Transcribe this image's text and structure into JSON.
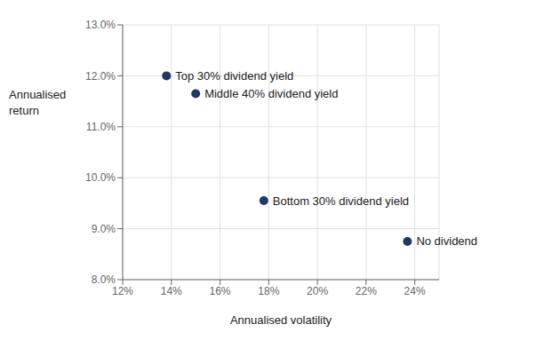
{
  "chart_data": {
    "type": "scatter",
    "x": [
      0.138,
      0.15,
      0.178,
      0.237
    ],
    "values": [
      0.12,
      0.1165,
      0.0955,
      0.0875
    ],
    "labels": [
      "Top 30% dividend yield",
      "Middle 40% dividend yield",
      "Bottom 30% dividend yield",
      "No dividend"
    ],
    "color": "#1F3864",
    "xlim": [
      0.12,
      0.25
    ],
    "ylim": [
      0.08,
      0.13
    ],
    "xticks": [
      {
        "value": 0.12,
        "label": "12%"
      },
      {
        "value": 0.14,
        "label": "14%"
      },
      {
        "value": 0.16,
        "label": "16%"
      },
      {
        "value": 0.18,
        "label": "18%"
      },
      {
        "value": 0.2,
        "label": "20%"
      },
      {
        "value": 0.22,
        "label": "22%"
      },
      {
        "value": 0.24,
        "label": "24%"
      }
    ],
    "yticks": [
      {
        "value": 0.08,
        "label": "8.0%"
      },
      {
        "value": 0.09,
        "label": "9.0%"
      },
      {
        "value": 0.1,
        "label": "10.0%"
      },
      {
        "value": 0.11,
        "label": "11.0%"
      },
      {
        "value": 0.12,
        "label": "12.0%"
      },
      {
        "value": 0.13,
        "label": "13.0%"
      }
    ],
    "xlabel": "Annualised volatility",
    "ylabel": "Annualised\nreturn",
    "grid": true
  }
}
